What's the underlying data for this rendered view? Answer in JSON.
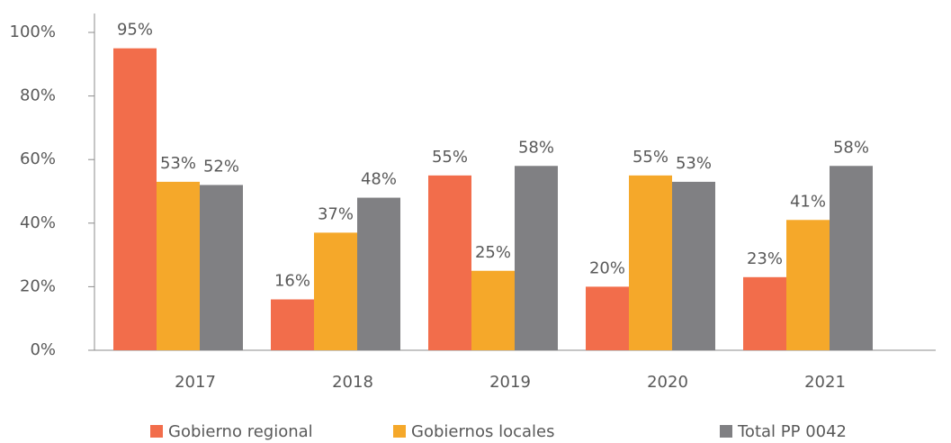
{
  "chart_data": {
    "type": "bar",
    "categories": [
      "2017",
      "2018",
      "2019",
      "2020",
      "2021"
    ],
    "series": [
      {
        "name": "Gobierno regional",
        "color": "#f26d4b",
        "values": [
          95,
          16,
          55,
          20,
          23
        ],
        "value_labels": [
          "95%",
          "16%",
          "55%",
          "20%",
          "23%"
        ]
      },
      {
        "name": "Gobiernos locales",
        "color": "#f5a82a",
        "values": [
          53,
          37,
          25,
          55,
          41
        ],
        "value_labels": [
          "53%",
          "37%",
          "25%",
          "55%",
          "41%"
        ]
      },
      {
        "name": "Total PP 0042",
        "color": "#808083",
        "values": [
          52,
          48,
          58,
          53,
          58
        ],
        "value_labels": [
          "52%",
          "48%",
          "58%",
          "53%",
          "58%"
        ]
      }
    ],
    "ylim": [
      0,
      100
    ],
    "yticks": [
      {
        "value": 0,
        "label": "0%"
      },
      {
        "value": 20,
        "label": "20%"
      },
      {
        "value": 40,
        "label": "40%"
      },
      {
        "value": 60,
        "label": "60%"
      },
      {
        "value": 80,
        "label": "80%"
      },
      {
        "value": 100,
        "label": "100%"
      }
    ],
    "legend": "bottom"
  }
}
